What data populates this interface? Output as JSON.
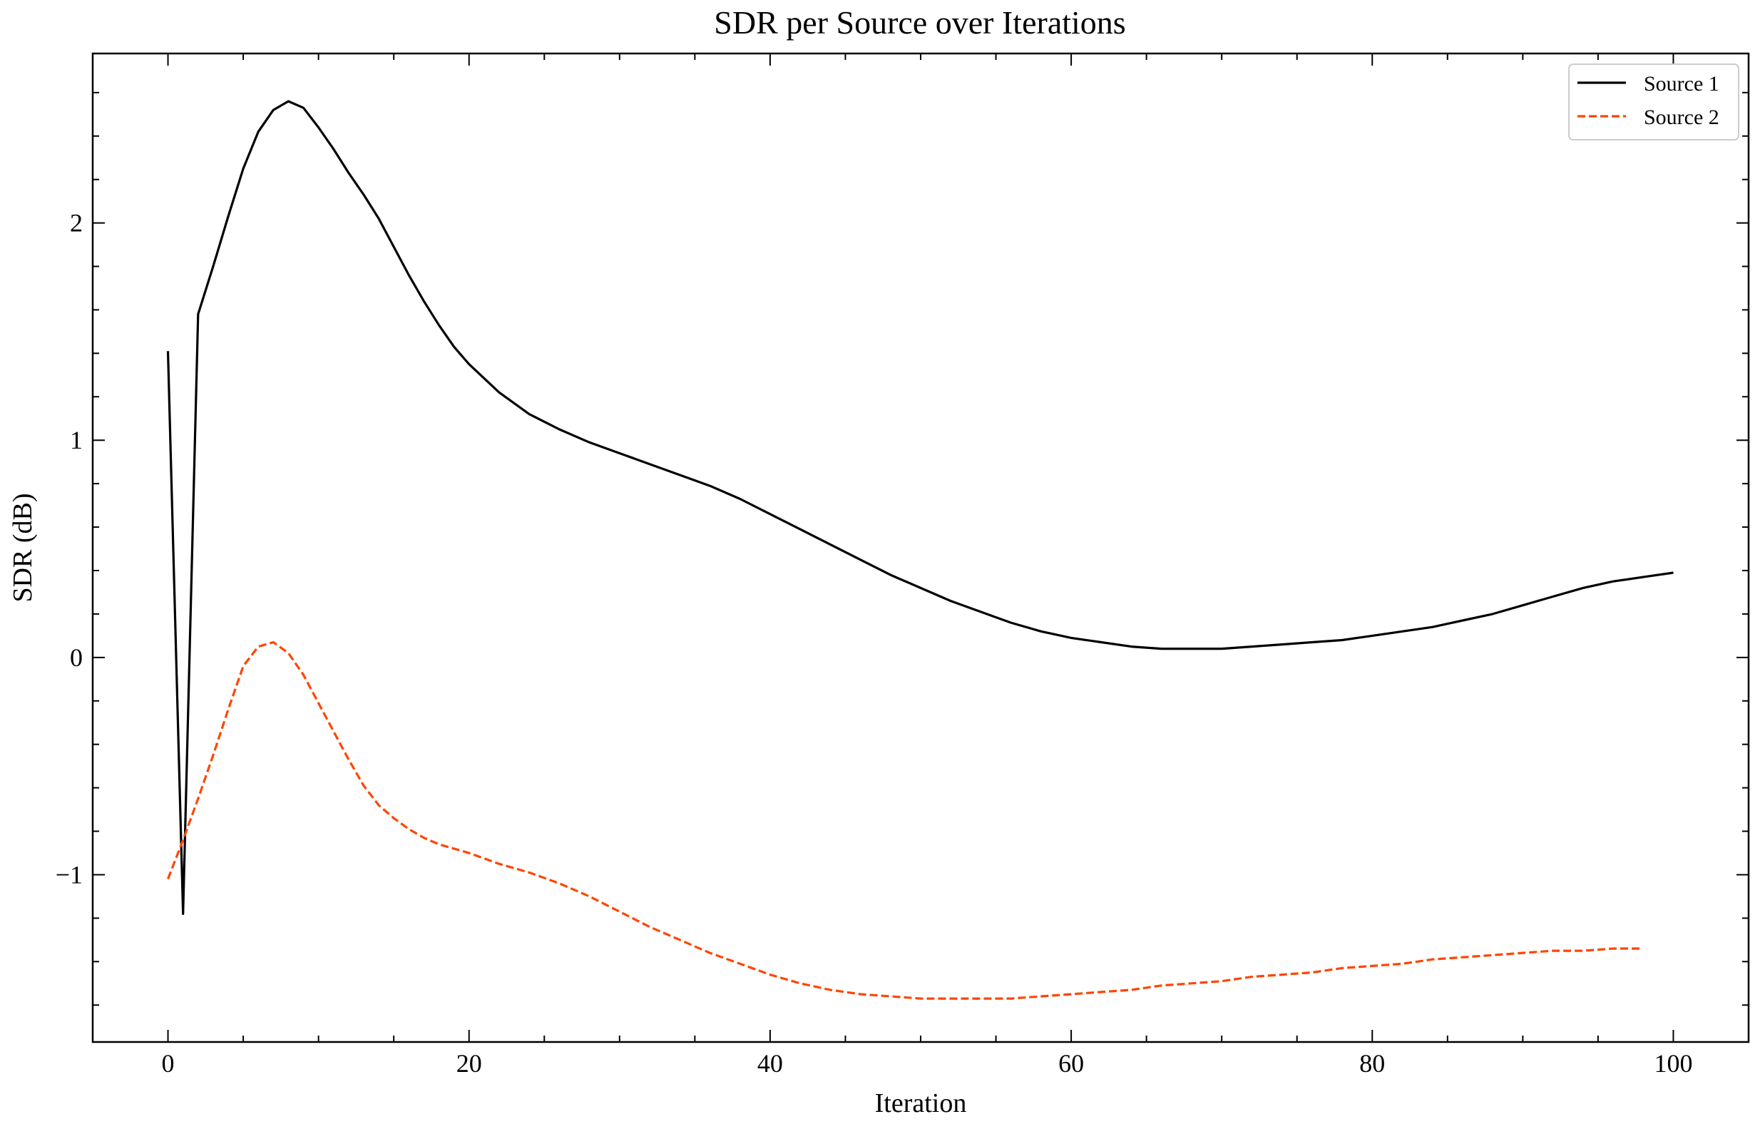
{
  "chart_data": {
    "type": "line",
    "title": "SDR per Source over Iterations",
    "xlabel": "Iteration",
    "ylabel": "SDR (dB)",
    "xlim": [
      -5,
      105
    ],
    "ylim": [
      -1.77,
      2.78
    ],
    "x_ticks": [
      0,
      20,
      40,
      60,
      80,
      100
    ],
    "x_tick_labels": [
      "0",
      "20",
      "40",
      "60",
      "80",
      "100"
    ],
    "y_ticks": [
      -1,
      0,
      1,
      2
    ],
    "y_tick_labels": [
      "−1",
      "0",
      "1",
      "2"
    ],
    "grid": false,
    "legend_position": "top-right",
    "series": [
      {
        "name": "Source 1",
        "color": "#000000",
        "style": "solid",
        "x": [
          0,
          1,
          2,
          3,
          4,
          5,
          6,
          7,
          8,
          9,
          10,
          11,
          12,
          13,
          14,
          15,
          16,
          17,
          18,
          19,
          20,
          22,
          24,
          26,
          28,
          30,
          32,
          34,
          36,
          38,
          40,
          42,
          44,
          46,
          48,
          50,
          52,
          54,
          56,
          58,
          60,
          62,
          64,
          66,
          68,
          70,
          72,
          74,
          76,
          78,
          80,
          82,
          84,
          86,
          88,
          90,
          92,
          94,
          96,
          98,
          100
        ],
        "y": [
          1.41,
          -1.18,
          1.58,
          1.8,
          2.03,
          2.25,
          2.42,
          2.52,
          2.56,
          2.53,
          2.44,
          2.34,
          2.23,
          2.13,
          2.02,
          1.89,
          1.76,
          1.64,
          1.53,
          1.43,
          1.35,
          1.22,
          1.12,
          1.05,
          0.99,
          0.94,
          0.89,
          0.84,
          0.79,
          0.73,
          0.66,
          0.59,
          0.52,
          0.45,
          0.38,
          0.32,
          0.26,
          0.21,
          0.16,
          0.12,
          0.09,
          0.07,
          0.05,
          0.04,
          0.04,
          0.04,
          0.05,
          0.06,
          0.07,
          0.08,
          0.1,
          0.12,
          0.14,
          0.17,
          0.2,
          0.24,
          0.28,
          0.32,
          0.35,
          0.37,
          0.39
        ]
      },
      {
        "name": "Source 2",
        "color": "#ff4500",
        "style": "dashed",
        "x": [
          0,
          1,
          2,
          3,
          4,
          5,
          6,
          7,
          8,
          9,
          10,
          11,
          12,
          13,
          14,
          15,
          16,
          17,
          18,
          20,
          22,
          24,
          26,
          28,
          30,
          32,
          34,
          36,
          38,
          40,
          42,
          44,
          46,
          48,
          50,
          52,
          54,
          56,
          58,
          60,
          62,
          64,
          66,
          68,
          70,
          72,
          74,
          76,
          78,
          80,
          82,
          84,
          86,
          88,
          90,
          92,
          94,
          96,
          98
        ],
        "y": [
          -1.02,
          -0.84,
          -0.65,
          -0.45,
          -0.24,
          -0.04,
          0.05,
          0.07,
          0.02,
          -0.08,
          -0.21,
          -0.34,
          -0.47,
          -0.59,
          -0.68,
          -0.74,
          -0.79,
          -0.83,
          -0.86,
          -0.9,
          -0.95,
          -0.99,
          -1.04,
          -1.1,
          -1.17,
          -1.24,
          -1.3,
          -1.36,
          -1.41,
          -1.46,
          -1.5,
          -1.53,
          -1.55,
          -1.56,
          -1.57,
          -1.57,
          -1.57,
          -1.57,
          -1.56,
          -1.55,
          -1.54,
          -1.53,
          -1.51,
          -1.5,
          -1.49,
          -1.47,
          -1.46,
          -1.45,
          -1.43,
          -1.42,
          -1.41,
          -1.39,
          -1.38,
          -1.37,
          -1.36,
          -1.35,
          -1.35,
          -1.34,
          -1.34
        ]
      }
    ]
  }
}
